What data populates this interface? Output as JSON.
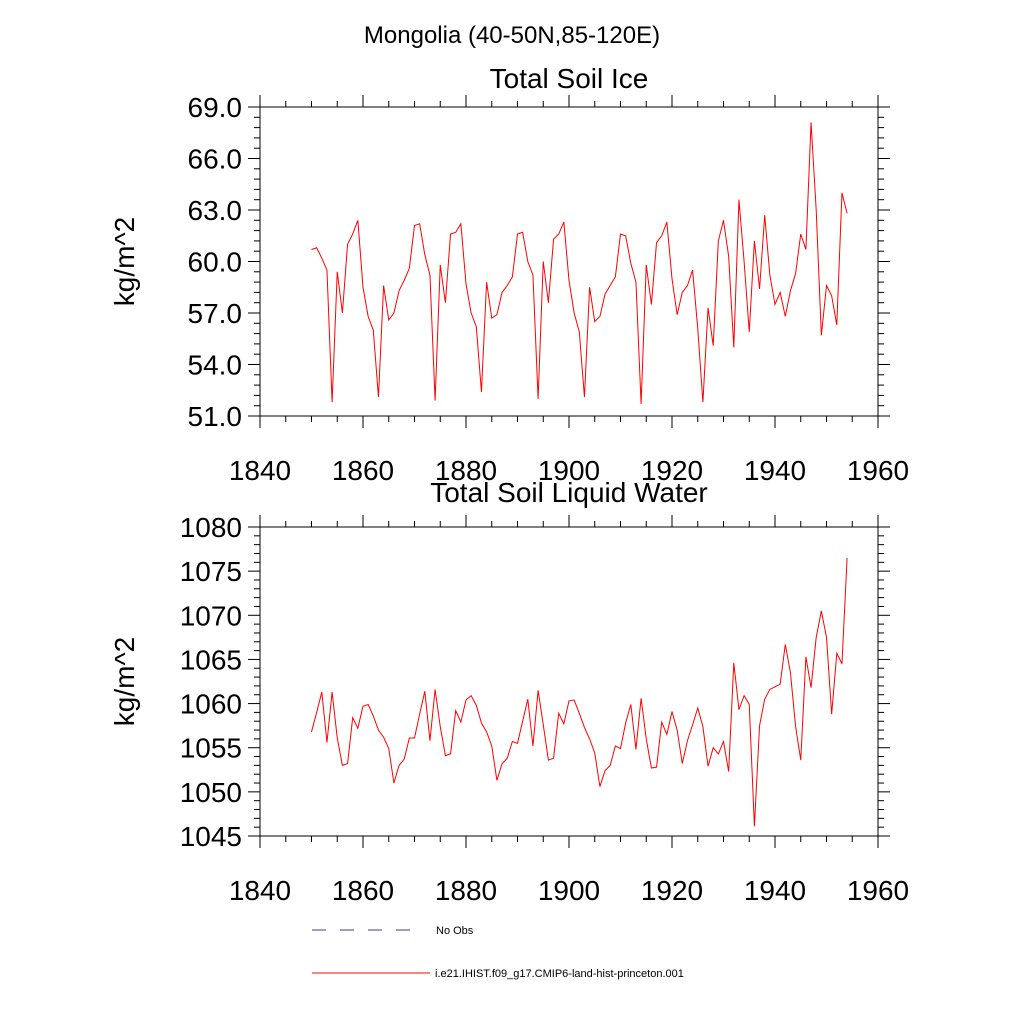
{
  "page": {
    "title": "Mongolia (40-50N,85-120E)"
  },
  "colors": {
    "model_line": "#ff0000",
    "obs_line": "#3b3f8f",
    "axis": "#000000"
  },
  "legend": {
    "obs_label": "No Obs",
    "model_label": "i.e21.IHIST.f09_g17.CMIP6-land-hist-princeton.001"
  },
  "chart_data": [
    {
      "type": "line",
      "title": "Total Soil Ice",
      "xlabel": "",
      "ylabel": "kg/m^2",
      "xlim": [
        1840,
        1960
      ],
      "ylim": [
        51.0,
        69.0
      ],
      "xticks": [
        1840,
        1860,
        1880,
        1900,
        1920,
        1940,
        1960
      ],
      "yticks": [
        51.0,
        54.0,
        57.0,
        60.0,
        63.0,
        66.0,
        69.0
      ],
      "ytick_labels": [
        "51.0",
        "54.0",
        "57.0",
        "60.0",
        "63.0",
        "66.0",
        "69.0"
      ],
      "grid": false,
      "series": [
        {
          "name": "i.e21.IHIST.f09_g17.CMIP6-land-hist-princeton.001",
          "x": [
            1850,
            1851,
            1852,
            1853,
            1854,
            1855,
            1856,
            1857,
            1858,
            1859,
            1860,
            1861,
            1862,
            1863,
            1864,
            1865,
            1866,
            1867,
            1868,
            1869,
            1870,
            1871,
            1872,
            1873,
            1874,
            1875,
            1876,
            1877,
            1878,
            1879,
            1880,
            1881,
            1882,
            1883,
            1884,
            1885,
            1886,
            1887,
            1888,
            1889,
            1890,
            1891,
            1892,
            1893,
            1894,
            1895,
            1896,
            1897,
            1898,
            1899,
            1900,
            1901,
            1902,
            1903,
            1904,
            1905,
            1906,
            1907,
            1908,
            1909,
            1910,
            1911,
            1912,
            1913,
            1914,
            1915,
            1916,
            1917,
            1918,
            1919,
            1920,
            1921,
            1922,
            1923,
            1924,
            1925,
            1926,
            1927,
            1928,
            1929,
            1930,
            1931,
            1932,
            1933,
            1934,
            1935,
            1936,
            1937,
            1938,
            1939,
            1940,
            1941,
            1942,
            1943,
            1944,
            1945,
            1946,
            1947,
            1948,
            1949,
            1950,
            1951,
            1952,
            1953,
            1954
          ],
          "y": [
            60.7,
            60.8,
            60.2,
            59.5,
            51.8,
            59.4,
            57.0,
            61.0,
            61.6,
            62.4,
            58.5,
            56.8,
            56.0,
            52.1,
            58.6,
            56.6,
            57.0,
            58.3,
            58.9,
            59.6,
            62.1,
            62.2,
            60.4,
            59.2,
            51.9,
            59.8,
            57.6,
            61.6,
            61.7,
            62.2,
            58.7,
            57.0,
            56.2,
            52.4,
            58.8,
            56.7,
            56.9,
            58.2,
            58.6,
            59.1,
            61.6,
            61.7,
            60.0,
            59.2,
            52.0,
            60.0,
            57.6,
            61.3,
            61.6,
            62.3,
            58.9,
            57.0,
            55.9,
            52.1,
            58.5,
            56.5,
            56.8,
            58.1,
            58.6,
            59.1,
            61.6,
            61.5,
            59.9,
            58.8,
            51.7,
            59.8,
            57.5,
            61.1,
            61.5,
            62.3,
            59.0,
            56.9,
            58.2,
            58.6,
            59.5,
            56.1,
            51.8,
            57.3,
            55.1,
            61.2,
            62.4,
            60.3,
            55.0,
            63.6,
            60.0,
            55.9,
            61.2,
            58.4,
            62.7,
            59.2,
            57.5,
            58.2,
            56.8,
            58.3,
            59.3,
            61.6,
            60.7,
            68.1,
            63.0,
            55.7,
            58.6,
            58.0,
            56.3,
            64.0,
            62.8
          ]
        }
      ]
    },
    {
      "type": "line",
      "title": "Total Soil Liquid Water",
      "xlabel": "",
      "ylabel": "kg/m^2",
      "xlim": [
        1840,
        1960
      ],
      "ylim": [
        1045,
        1080
      ],
      "xticks": [
        1840,
        1860,
        1880,
        1900,
        1920,
        1940,
        1960
      ],
      "yticks": [
        1045,
        1050,
        1055,
        1060,
        1065,
        1070,
        1075,
        1080
      ],
      "ytick_labels": [
        "1045",
        "1050",
        "1055",
        "1060",
        "1065",
        "1070",
        "1075",
        "1080"
      ],
      "grid": false,
      "series": [
        {
          "name": "i.e21.IHIST.f09_g17.CMIP6-land-hist-princeton.001",
          "x": [
            1850,
            1851,
            1852,
            1853,
            1854,
            1855,
            1856,
            1857,
            1858,
            1859,
            1860,
            1861,
            1862,
            1863,
            1864,
            1865,
            1866,
            1867,
            1868,
            1869,
            1870,
            1871,
            1872,
            1873,
            1874,
            1875,
            1876,
            1877,
            1878,
            1879,
            1880,
            1881,
            1882,
            1883,
            1884,
            1885,
            1886,
            1887,
            1888,
            1889,
            1890,
            1891,
            1892,
            1893,
            1894,
            1895,
            1896,
            1897,
            1898,
            1899,
            1900,
            1901,
            1902,
            1903,
            1904,
            1905,
            1906,
            1907,
            1908,
            1909,
            1910,
            1911,
            1912,
            1913,
            1914,
            1915,
            1916,
            1917,
            1918,
            1919,
            1920,
            1921,
            1922,
            1923,
            1924,
            1925,
            1926,
            1927,
            1928,
            1929,
            1930,
            1931,
            1932,
            1933,
            1934,
            1935,
            1936,
            1937,
            1938,
            1939,
            1940,
            1941,
            1942,
            1943,
            1944,
            1945,
            1946,
            1947,
            1948,
            1949,
            1950,
            1951,
            1952,
            1953,
            1954
          ],
          "y": [
            1056.8,
            1059.0,
            1061.3,
            1055.6,
            1061.3,
            1056.1,
            1053.0,
            1053.2,
            1058.4,
            1057.2,
            1059.7,
            1059.9,
            1058.6,
            1057.0,
            1056.2,
            1054.9,
            1051.0,
            1053.0,
            1053.7,
            1056.1,
            1056.1,
            1058.8,
            1061.4,
            1055.8,
            1061.6,
            1057.4,
            1054.1,
            1054.3,
            1059.2,
            1057.9,
            1060.4,
            1060.9,
            1059.8,
            1057.8,
            1056.8,
            1055.2,
            1051.3,
            1053.2,
            1053.8,
            1055.7,
            1055.5,
            1058.0,
            1060.5,
            1055.2,
            1061.5,
            1057.6,
            1053.6,
            1053.8,
            1058.9,
            1057.7,
            1060.3,
            1060.4,
            1058.9,
            1057.3,
            1056.0,
            1054.4,
            1050.6,
            1052.4,
            1053.0,
            1055.2,
            1054.9,
            1057.8,
            1059.9,
            1054.8,
            1060.6,
            1056.0,
            1052.7,
            1052.8,
            1057.9,
            1056.5,
            1059.1,
            1057.0,
            1053.2,
            1055.8,
            1057.6,
            1059.5,
            1057.4,
            1052.9,
            1055.0,
            1054.3,
            1055.7,
            1052.3,
            1064.6,
            1059.3,
            1060.9,
            1059.9,
            1046.1,
            1057.5,
            1060.5,
            1061.6,
            1061.9,
            1062.2,
            1066.7,
            1063.5,
            1057.4,
            1053.6,
            1065.3,
            1061.8,
            1067.5,
            1070.5,
            1067.5,
            1058.8,
            1065.7,
            1064.5,
            1076.5
          ]
        }
      ]
    }
  ]
}
